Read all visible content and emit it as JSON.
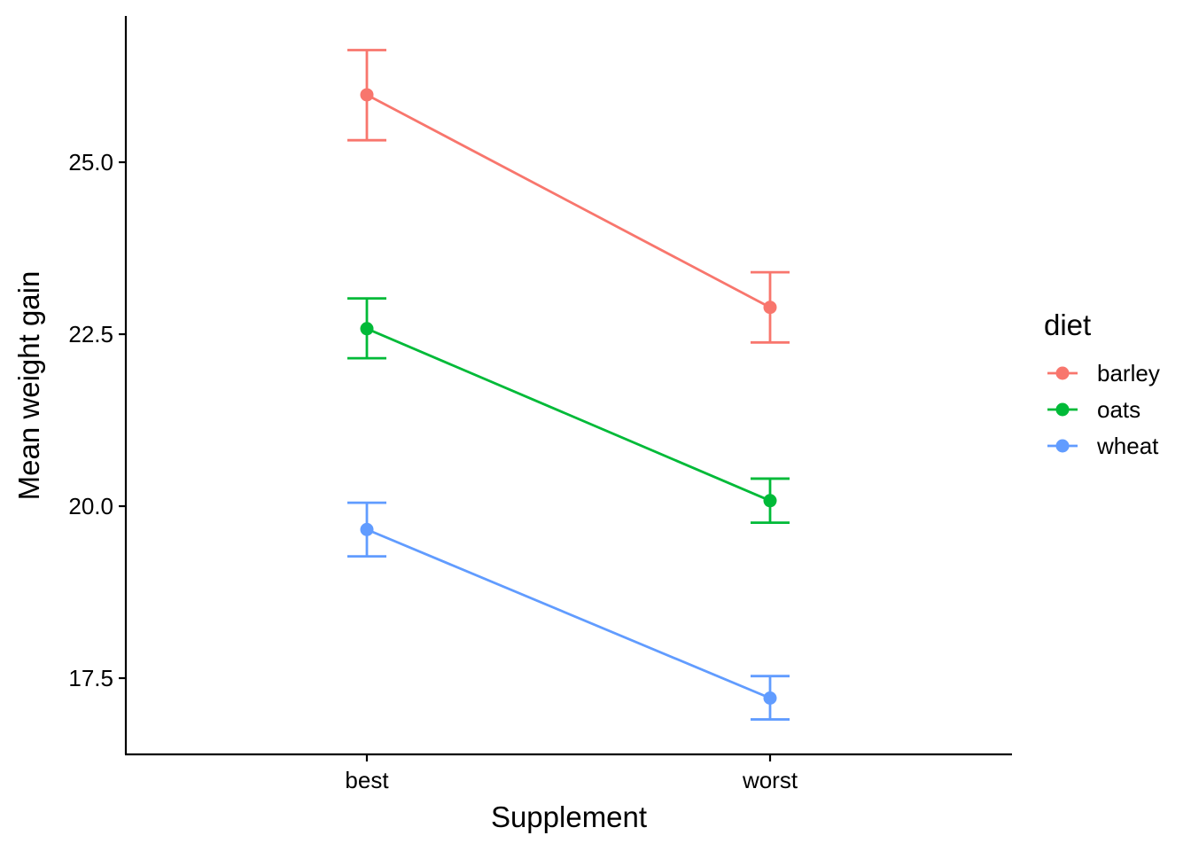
{
  "chart_data": {
    "type": "line",
    "title": "",
    "xlabel": "Supplement",
    "ylabel": "Mean weight gain",
    "categories": [
      "best",
      "worst"
    ],
    "ylim": [
      16.4,
      27.1
    ],
    "yticks": [
      "17.5",
      "20.0",
      "22.5",
      "25.0"
    ],
    "grid": false,
    "legend": {
      "title": "diet",
      "position": "right"
    },
    "series": [
      {
        "name": "barley",
        "color": "#F8766D",
        "values": [
          25.98,
          22.89
        ],
        "lower": [
          25.32,
          22.38
        ],
        "upper": [
          26.63,
          23.4
        ]
      },
      {
        "name": "oats",
        "color": "#00BA38",
        "values": [
          22.58,
          20.08
        ],
        "lower": [
          22.15,
          19.76
        ],
        "upper": [
          23.02,
          20.4
        ]
      },
      {
        "name": "wheat",
        "color": "#619CFF",
        "values": [
          19.66,
          17.21
        ],
        "lower": [
          19.27,
          16.9
        ],
        "upper": [
          20.05,
          17.53
        ]
      }
    ]
  }
}
